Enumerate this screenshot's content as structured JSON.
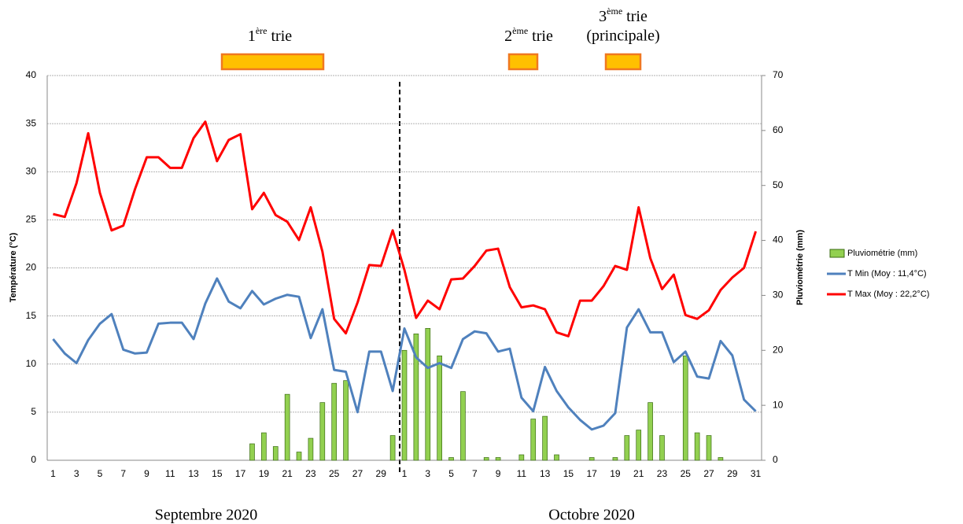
{
  "chart_data": {
    "type": "bar_line",
    "annotations": [
      [
        "1",
        "ère",
        " trie"
      ],
      [
        "2",
        "ème",
        " trie"
      ],
      [
        "3",
        "ème",
        " trie"
      ],
      "(principale)"
    ],
    "months": [
      "Septembre 2020",
      "Octobre 2020"
    ],
    "ylabel": "Température (°C)",
    "y2label": "Pluviométrie (mm)",
    "categories": [
      "1",
      null,
      "3",
      null,
      "5",
      null,
      "7",
      null,
      "9",
      null,
      "11",
      null,
      "13",
      null,
      "15",
      null,
      "17",
      null,
      "19",
      null,
      "21",
      null,
      "23",
      null,
      "25",
      null,
      "27",
      null,
      "29",
      null,
      "1",
      null,
      "3",
      null,
      "5",
      null,
      "7",
      null,
      "9",
      null,
      "11",
      null,
      "13",
      null,
      "15",
      null,
      "17",
      null,
      "19",
      null,
      "21",
      null,
      "23",
      null,
      "25",
      null,
      "27",
      null,
      "29",
      null,
      "31"
    ],
    "ylim": [
      0,
      40
    ],
    "yticks": [
      0,
      5,
      10,
      15,
      20,
      25,
      30,
      35,
      40
    ],
    "y2lim": [
      0,
      70
    ],
    "y2ticks": [
      0,
      10,
      20,
      30,
      40,
      50,
      60,
      70
    ],
    "grid": true,
    "series": [
      {
        "name": "Pluviométrie (mm)",
        "type": "bar",
        "axis": "y2",
        "color": "#92d050",
        "values": [
          0,
          0,
          0,
          0,
          0,
          0,
          0,
          0,
          0,
          0,
          0,
          0,
          0,
          0,
          0,
          0,
          0,
          3.0,
          5.0,
          2.5,
          12.0,
          1.5,
          4.0,
          10.5,
          14.0,
          14.5,
          0,
          0,
          0,
          4.5,
          20.0,
          23.0,
          24.0,
          19.0,
          0.5,
          12.5,
          0,
          0.5,
          0.5,
          0,
          1.0,
          7.5,
          8.0,
          1.0,
          0,
          0,
          0.5,
          0,
          0.5,
          4.5,
          5.5,
          10.5,
          4.5,
          0,
          19.0,
          5.0,
          4.5,
          0.5,
          0,
          0,
          0
        ]
      },
      {
        "name": "T Min (Moy : 11,4°C)",
        "type": "line",
        "color": "#4f81bd",
        "values": [
          12.6,
          11.1,
          10.1,
          12.5,
          14.2,
          15.2,
          11.5,
          11.1,
          11.2,
          14.2,
          14.3,
          14.3,
          12.6,
          16.3,
          18.9,
          16.5,
          15.8,
          17.6,
          16.2,
          16.8,
          17.2,
          17.0,
          12.7,
          15.7,
          9.4,
          9.2,
          5.0,
          11.3,
          11.3,
          7.2,
          13.7,
          10.7,
          9.6,
          10.1,
          9.6,
          12.6,
          13.4,
          13.2,
          11.3,
          11.6,
          6.5,
          5.1,
          9.7,
          7.2,
          5.5,
          4.2,
          3.2,
          3.6,
          4.9,
          13.8,
          15.7,
          13.3,
          13.3,
          10.2,
          11.3,
          8.7,
          8.5,
          12.4,
          10.9,
          6.3,
          5.1
        ]
      },
      {
        "name": "T Max (Moy : 22,2°C)",
        "type": "line",
        "color": "#ff0000",
        "values": [
          25.6,
          25.3,
          28.8,
          34.0,
          27.8,
          23.9,
          24.4,
          28.2,
          31.5,
          31.5,
          30.4,
          30.4,
          33.5,
          35.2,
          31.1,
          33.3,
          33.9,
          26.1,
          27.8,
          25.5,
          24.8,
          22.9,
          26.3,
          21.7,
          14.7,
          13.2,
          16.4,
          20.3,
          20.2,
          23.9,
          19.8,
          14.8,
          16.6,
          15.7,
          18.8,
          18.9,
          20.2,
          21.8,
          22.0,
          18.0,
          15.9,
          16.1,
          15.7,
          13.3,
          12.9,
          16.6,
          16.6,
          18.1,
          20.2,
          19.8,
          26.3,
          21.0,
          17.8,
          19.3,
          15.1,
          14.7,
          15.6,
          17.7,
          19.0,
          20.0,
          23.8
        ]
      }
    ]
  }
}
